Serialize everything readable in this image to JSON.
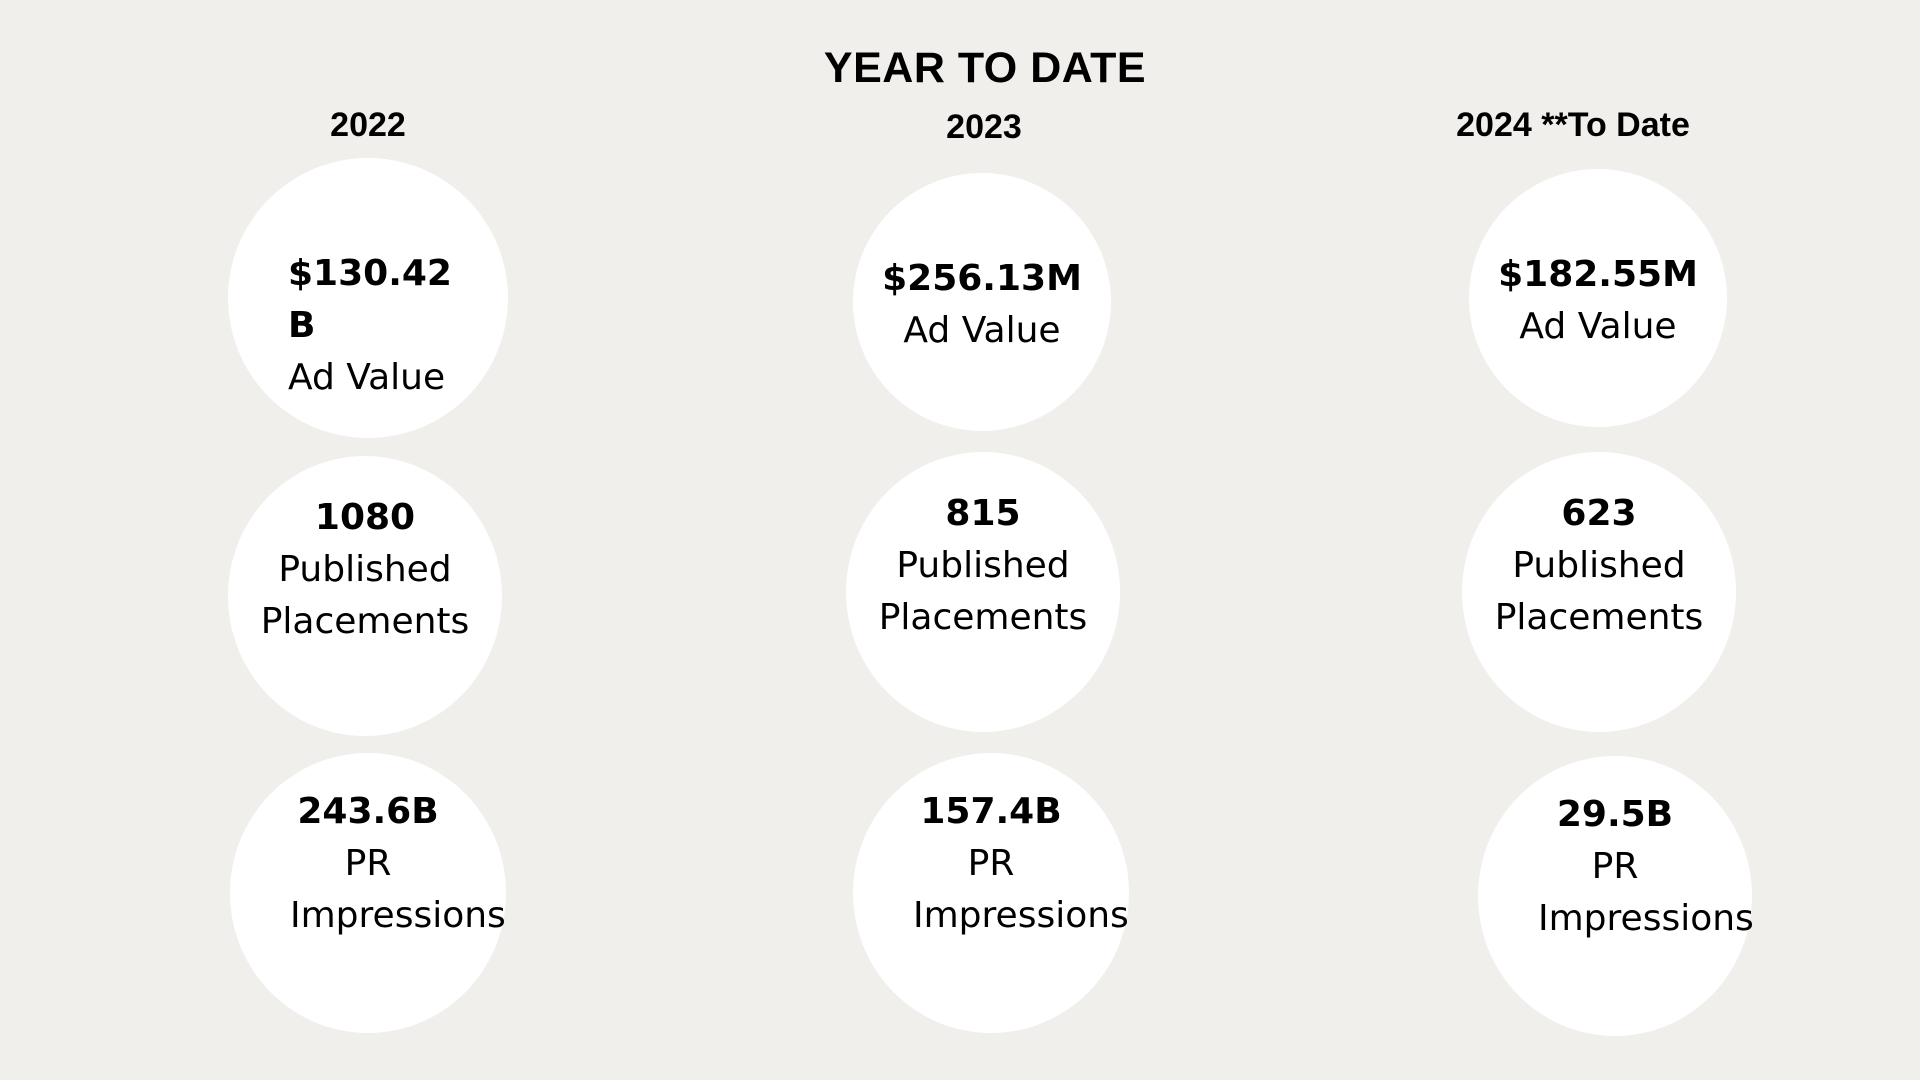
{
  "title": "YEAR TO DATE",
  "columns": [
    {
      "year": "2022",
      "metrics": [
        {
          "value": "$130.42 B",
          "label": "Ad Value"
        },
        {
          "value": "1080",
          "label": "Published Placements"
        },
        {
          "value": "243.6B",
          "label": "PR Impressions"
        }
      ]
    },
    {
      "year": "2023",
      "metrics": [
        {
          "value": "$256.13M",
          "label": "Ad Value"
        },
        {
          "value": "815",
          "label": "Published Placements"
        },
        {
          "value": "157.4B",
          "label": "PR Impressions"
        }
      ]
    },
    {
      "year": "2024 **To Date",
      "metrics": [
        {
          "value": "$182.55M",
          "label": "Ad Value"
        },
        {
          "value": "623",
          "label": "Published Placements"
        },
        {
          "value": "29.5B",
          "label": "PR Impressions"
        }
      ]
    }
  ]
}
